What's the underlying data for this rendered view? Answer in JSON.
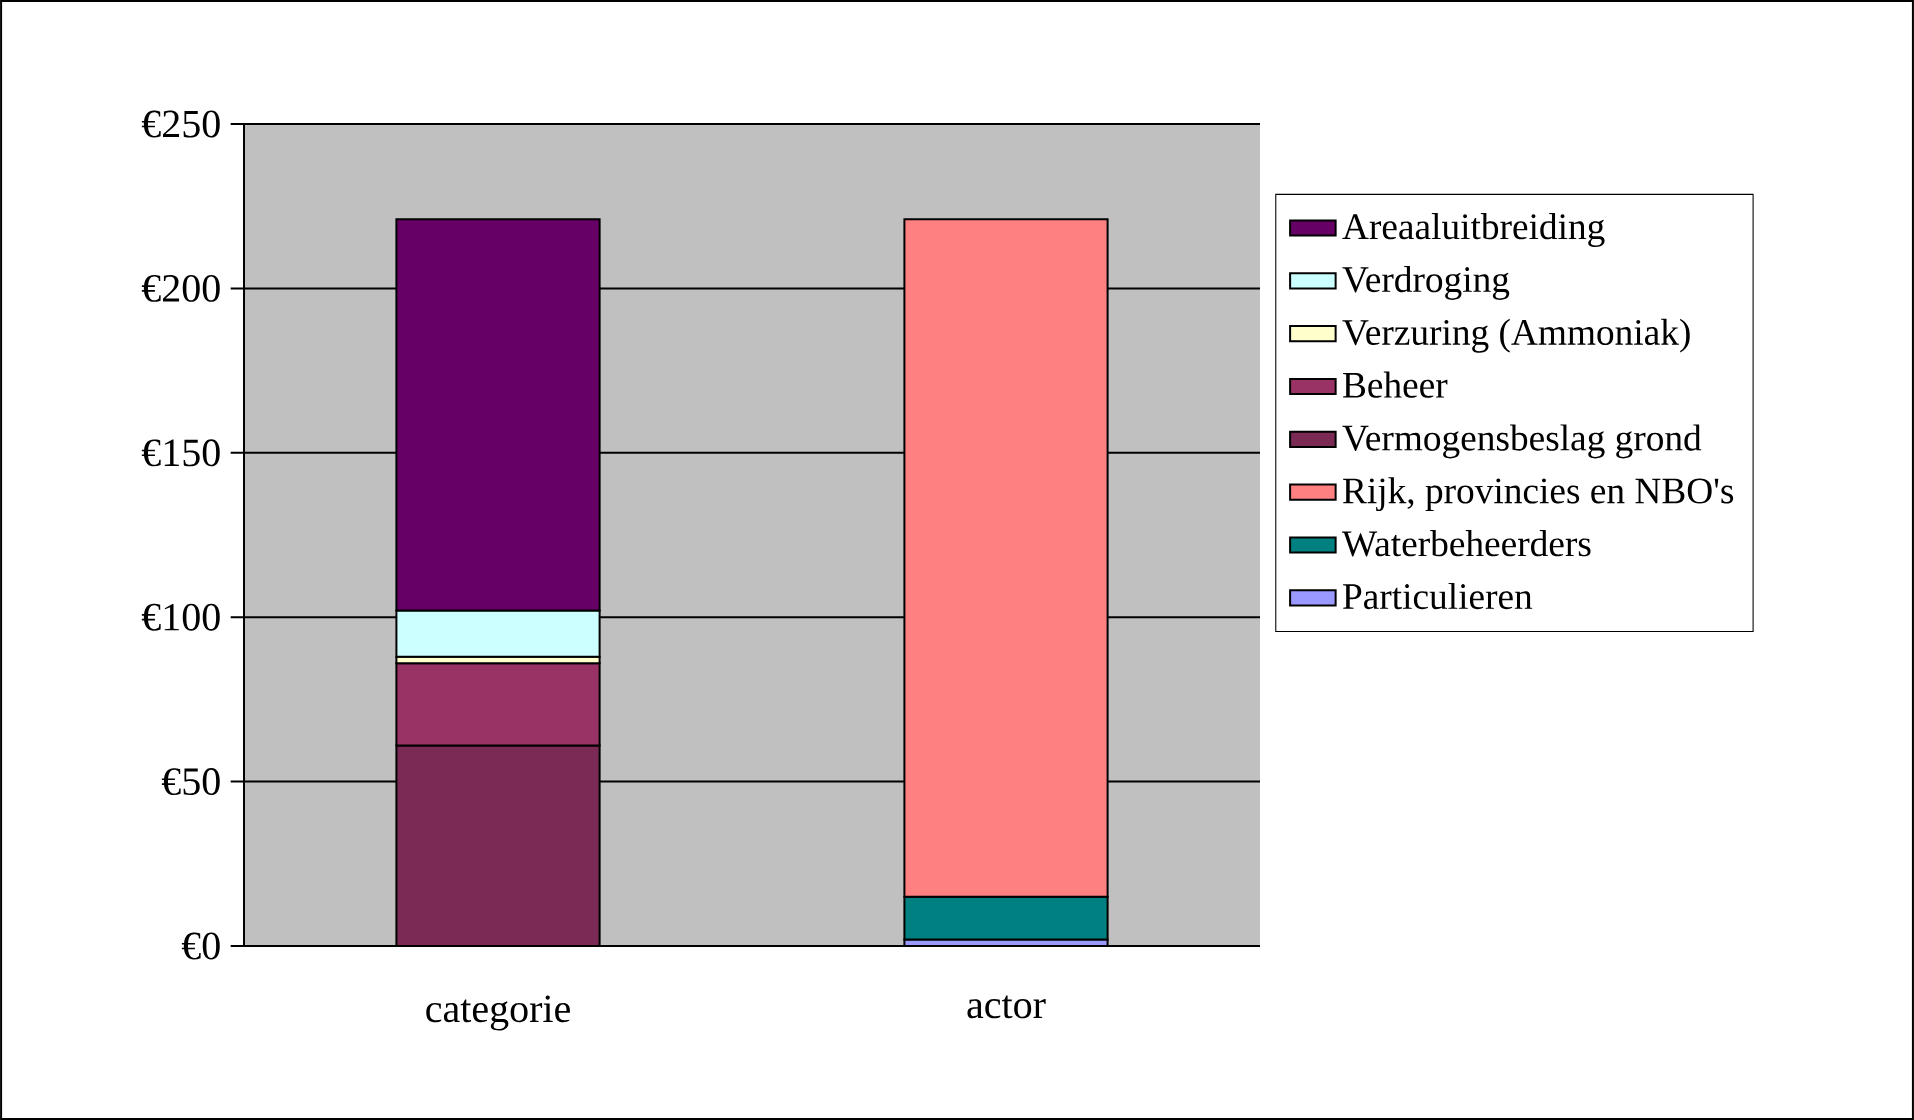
{
  "chart_data": {
    "type": "bar",
    "stacked": true,
    "categories": [
      "categorie",
      "actor"
    ],
    "series": [
      {
        "name": "Particulieren",
        "color": "#9999ff",
        "values": [
          null,
          2
        ]
      },
      {
        "name": "Waterbeheerders",
        "color": "#008080",
        "values": [
          null,
          13
        ]
      },
      {
        "name": "Rijk, provincies en NBO's",
        "color": "#ff8080",
        "values": [
          null,
          206
        ]
      },
      {
        "name": "Vermogensbeslag grond",
        "color": "#7a2a55",
        "values": [
          61,
          null
        ]
      },
      {
        "name": "Beheer",
        "color": "#993366",
        "values": [
          25,
          null
        ]
      },
      {
        "name": "Verzuring (Ammoniak)",
        "color": "#ffffcc",
        "values": [
          2,
          null
        ]
      },
      {
        "name": "Verdroging",
        "color": "#ccffff",
        "values": [
          14,
          null
        ]
      },
      {
        "name": "Areaaluitbreiding",
        "color": "#660066",
        "values": [
          119,
          null
        ]
      }
    ],
    "ylim": [
      0,
      250
    ],
    "yticks": [
      {
        "value": 0,
        "label": "€0"
      },
      {
        "value": 50,
        "label": "€50"
      },
      {
        "value": 100,
        "label": "€100"
      },
      {
        "value": 150,
        "label": "€150"
      },
      {
        "value": 200,
        "label": "€200"
      },
      {
        "value": 250,
        "label": "€250"
      }
    ],
    "grid": "y",
    "legend": "right"
  }
}
